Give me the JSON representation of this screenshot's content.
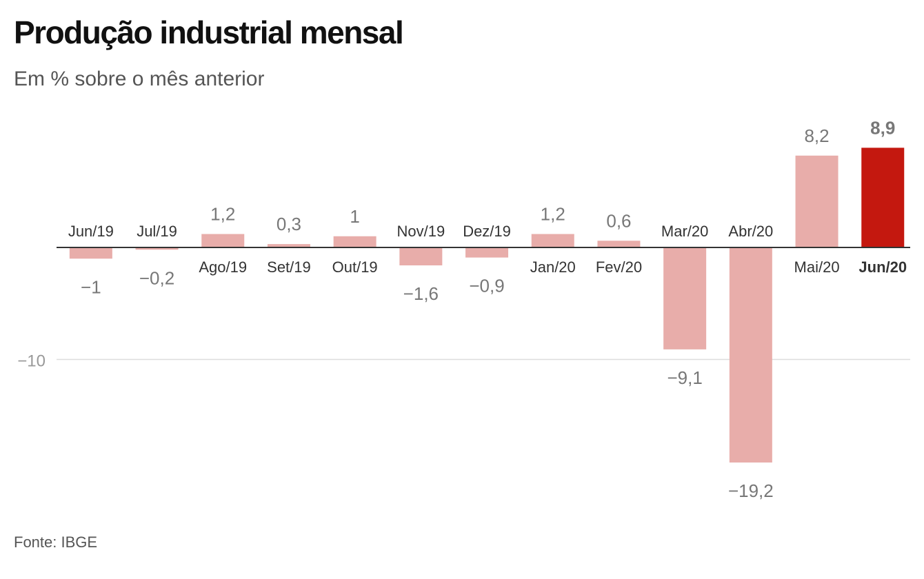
{
  "title": "Produção industrial mensal",
  "subtitle": "Em % sobre o mês anterior",
  "source": "Fonte: IBGE",
  "colors": {
    "bar": "#e8adaa",
    "highlight": "#c4180f",
    "axis": "#333333",
    "grid": "#dddddd",
    "value_label": "#777777",
    "category_label": "#333333",
    "tick_label": "#999999"
  },
  "chart_data": {
    "type": "bar",
    "categories": [
      "Jun/19",
      "Jul/19",
      "Ago/19",
      "Set/19",
      "Out/19",
      "Nov/19",
      "Dez/19",
      "Jan/20",
      "Fev/20",
      "Mar/20",
      "Abr/20",
      "Mai/20",
      "Jun/20"
    ],
    "values": [
      -1,
      -0.2,
      1.2,
      0.3,
      1,
      -1.6,
      -0.9,
      1.2,
      0.6,
      -9.1,
      -19.2,
      8.2,
      8.9
    ],
    "value_labels": [
      "−1",
      "−0,2",
      "1,2",
      "0,3",
      "1",
      "−1,6",
      "−0,9",
      "1,2",
      "0,6",
      "−9,1",
      "−19,2",
      "8,2",
      "8,9"
    ],
    "highlight_index": 12,
    "yticks": [
      {
        "value": -10,
        "label": "−10"
      }
    ],
    "ylim": [
      -19.2,
      8.9
    ],
    "grid": true,
    "xlabel": "",
    "ylabel": ""
  }
}
